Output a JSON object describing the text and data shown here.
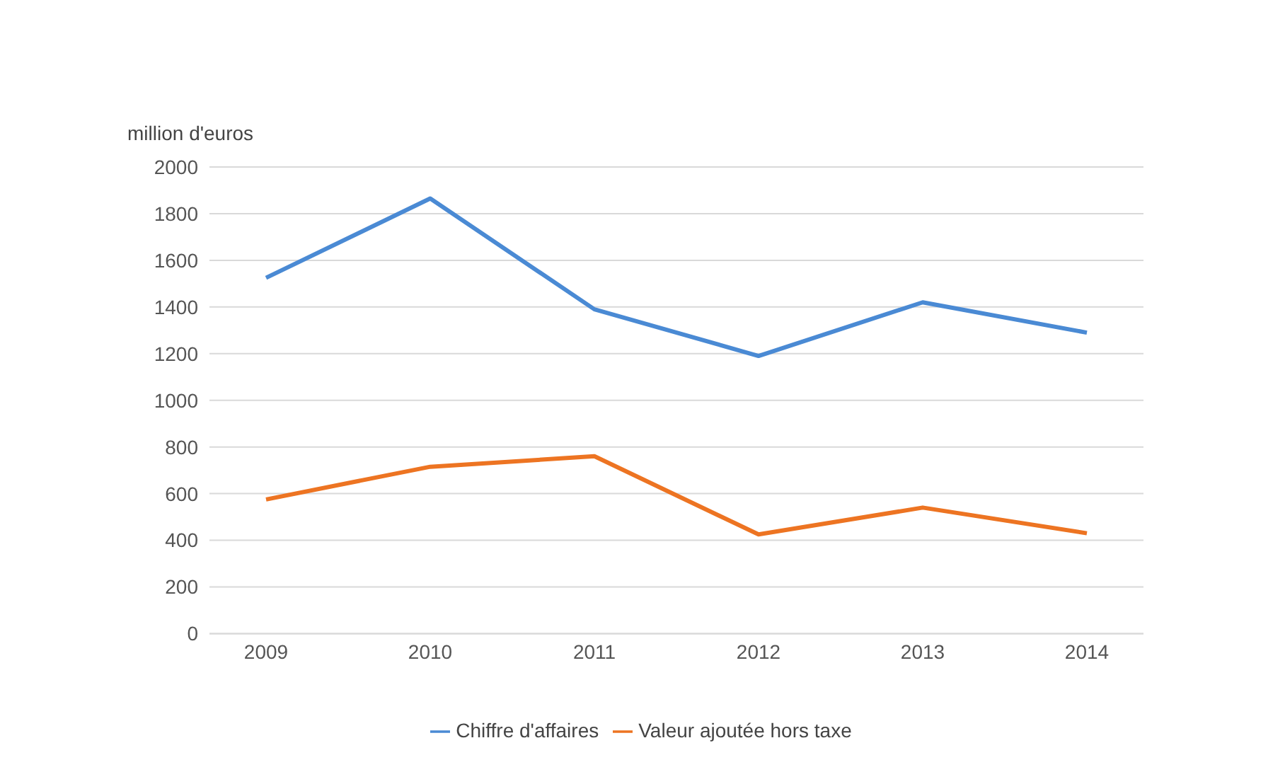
{
  "chart_data": {
    "type": "line",
    "ylabel": "million d'euros",
    "categories": [
      "2009",
      "2010",
      "2011",
      "2012",
      "2013",
      "2014"
    ],
    "series": [
      {
        "name": "Chiffre d'affaires",
        "color": "#4a8ad4",
        "values": [
          1525,
          1865,
          1390,
          1190,
          1420,
          1290
        ]
      },
      {
        "name": "Valeur ajoutée hors taxe",
        "color": "#ed7422",
        "values": [
          575,
          715,
          760,
          425,
          540,
          430
        ]
      }
    ],
    "ylim": [
      0,
      2000
    ],
    "yticks": [
      0,
      200,
      400,
      600,
      800,
      1000,
      1200,
      1400,
      1600,
      1800,
      2000
    ],
    "grid": "y",
    "legend": "bottom",
    "marker": "none",
    "line_style": "solid"
  }
}
